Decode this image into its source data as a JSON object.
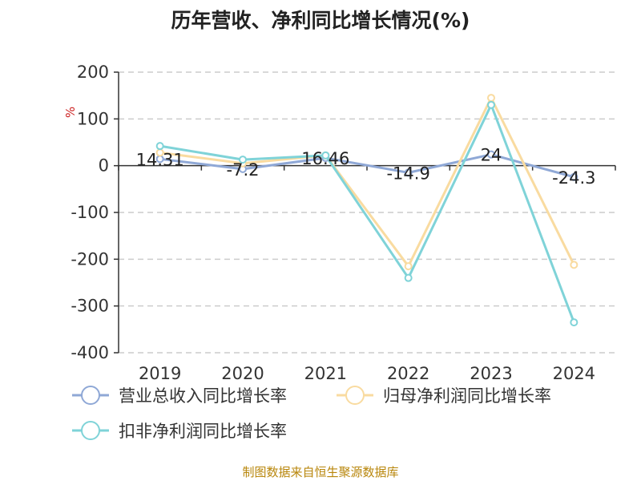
{
  "title": "历年营收、净利同比增长情况(%)",
  "footer": "制图数据来自恒生聚源数据库",
  "chart_data": {
    "type": "line",
    "title": "历年营收、净利同比增长情况(%)",
    "ylabel": "%",
    "categories": [
      "2019",
      "2020",
      "2021",
      "2022",
      "2023",
      "2024"
    ],
    "ylim": [
      -400,
      200
    ],
    "yticks": [
      200,
      100,
      0,
      -100,
      -200,
      -300,
      -400
    ],
    "grid": true,
    "legend_position": "bottom",
    "series": [
      {
        "name": "营业总收入同比增长率",
        "color": "#8fa8d6",
        "values": [
          14.31,
          -7.2,
          16.46,
          -14.9,
          24,
          -24.3
        ],
        "labels": [
          "14.31",
          "-7.2",
          "16.46",
          "-14.9",
          "24",
          "-24.3"
        ]
      },
      {
        "name": "归母净利润同比增长率",
        "color": "#f9dba0",
        "values": [
          28,
          5,
          22,
          -215,
          145,
          -212
        ]
      },
      {
        "name": "扣非净利润同比增长率",
        "color": "#7fd3d8",
        "values": [
          42,
          13,
          22,
          -240,
          130,
          -335
        ]
      }
    ]
  }
}
